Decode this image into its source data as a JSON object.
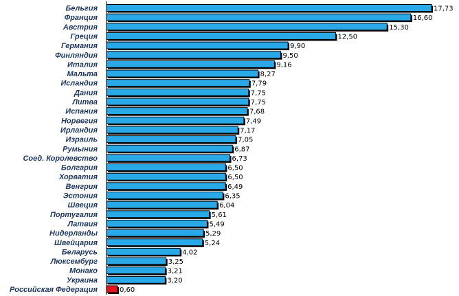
{
  "chart_data": {
    "type": "bar",
    "orientation": "horizontal",
    "title": "",
    "xlabel": "",
    "ylabel": "",
    "grid": false,
    "legend": "none",
    "xlim": [
      0,
      17.73
    ],
    "colors": {
      "default_bar": "#29a9e8",
      "highlight_bar": "#e8141b",
      "bar_outline": "#000000",
      "bar_shadow": "#000000",
      "category_text": "#1f3864"
    },
    "highlight_categories": [
      "Российская Федерация"
    ],
    "categories": [
      "Бельгия",
      "Франция",
      "Австрия",
      "Греция",
      "Германия",
      "Финляндия",
      "Италия",
      "Мальта",
      "Исландия",
      "Дания",
      "Литва",
      "Испания",
      "Норвегия",
      "Ирландия",
      "Израиль",
      "Румыния",
      "Соед. Королевство",
      "Болгария",
      "Хорватия",
      "Венгрия",
      "Эстония",
      "Швеция",
      "Португалия",
      "Латвия",
      "Нидерланды",
      "Швейцария",
      "Беларусь",
      "Люксембург",
      "Монако",
      "Украина",
      "Российская Федерация"
    ],
    "values": [
      17.73,
      16.6,
      15.3,
      12.5,
      9.9,
      9.5,
      9.16,
      8.27,
      7.79,
      7.75,
      7.75,
      7.68,
      7.49,
      7.17,
      7.05,
      6.87,
      6.73,
      6.5,
      6.5,
      6.49,
      6.35,
      6.04,
      5.61,
      5.49,
      5.29,
      5.24,
      4.02,
      3.25,
      3.21,
      3.2,
      0.6
    ],
    "value_labels": [
      "17,73",
      "16,60",
      "15,30",
      "12,50",
      "9,90",
      "9,50",
      "9,16",
      "8,27",
      "7,79",
      "7,75",
      "7,75",
      "7,68",
      "7,49",
      "7,17",
      "7,05",
      "6,87",
      "6,73",
      "6,50",
      "6,50",
      "6,49",
      "6,35",
      "6,04",
      "5,61",
      "5,49",
      "5,29",
      "5,24",
      "4,02",
      "3,25",
      "3,21",
      "3,20",
      "0,60"
    ]
  }
}
